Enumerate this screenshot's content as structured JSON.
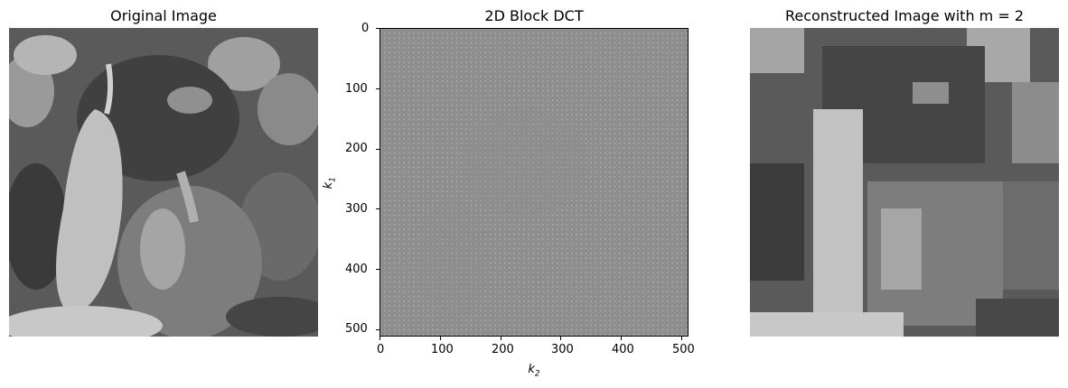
{
  "panels": [
    {
      "title": "Original Image",
      "image": "grayscale-peppers-photo"
    },
    {
      "title": "2D Block DCT",
      "image": "block-dct-coefficient-map"
    },
    {
      "title": "Reconstructed Image with m = 2",
      "image": "low-resolution-peppers-reconstruction"
    }
  ],
  "dct_axes": {
    "x_label_base": "k",
    "x_label_sub": "2",
    "y_label_base": "k",
    "y_label_sub": "1",
    "x_ticks": [
      "0",
      "100",
      "200",
      "300",
      "400",
      "500"
    ],
    "y_ticks": [
      "0",
      "100",
      "200",
      "300",
      "400",
      "500"
    ],
    "range": [
      0,
      511
    ]
  },
  "colors": {
    "background": "#ffffff",
    "gray_mid": "#8a8a8a"
  }
}
